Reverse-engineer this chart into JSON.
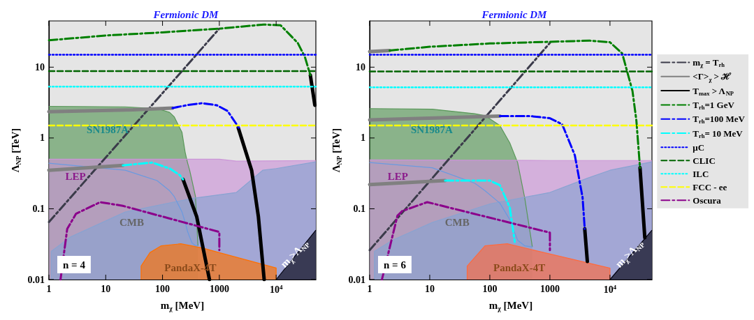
{
  "chart_data": [
    {
      "type": "line",
      "title": "Fermionic DM",
      "xlabel": "m$_{χ}$ [MeV]",
      "ylabel": "Λ$_{NP}$ [TeV]",
      "log": "xy",
      "xlim": [
        1,
        50000
      ],
      "ylim": [
        0.01,
        45
      ],
      "xticks": [
        1,
        10,
        100,
        1000,
        {
          "value": 10000,
          "label": "10$^{4}$"
        }
      ],
      "yticks": [
        0.01,
        0.1,
        1,
        10
      ],
      "annotations": [
        "SN1987A",
        "LEP",
        "CMB",
        "PandaX-4T",
        "m$_{χ}$>Λ$_{NP}$",
        "n = 4"
      ],
      "series": [
        {
          "type": "area",
          "color": "#599859",
          "x": [
            1,
            22,
            80,
            133,
            160,
            220,
            250,
            275,
            300,
            330,
            380,
            420
          ],
          "values": [
            2.8,
            2.75,
            2.6,
            2.3,
            2.0,
            1.2,
            0.63,
            0.45,
            0.35,
            0.25,
            0.15,
            0.03
          ]
        },
        {
          "type": "line",
          "color": "#6a9ae0",
          "line_style": "solid",
          "x": [
            1,
            22,
            80,
            133,
            160,
            220,
            250,
            275,
            300,
            330,
            380,
            420
          ],
          "values": [
            0.44,
            0.35,
            0.25,
            0.18,
            0.15,
            0.09,
            0.065,
            0.048,
            0.04,
            0.033,
            0.03,
            0.03
          ]
        },
        {
          "type": "area",
          "color": "#cb94d7",
          "x": [
            1,
            1000,
            2000,
            50000
          ],
          "values": [
            0.5,
            0.5,
            0.47,
            0.48
          ]
        },
        {
          "type": "area",
          "color": "#89a3d1",
          "x": [
            1.1,
            1.1,
            2.4,
            22,
            330,
            2000,
            5800,
            10000,
            50000
          ],
          "values": [
            0.01,
            0.025,
            0.04,
            0.09,
            0.14,
            0.17,
            0.35,
            0.37,
            0.46
          ]
        },
        {
          "type": "area",
          "color": "#ff7000",
          "x": [
            42,
            42,
            60,
            95,
            210,
            500,
            1000,
            10000,
            10000
          ],
          "values": [
            0.01,
            0.0155,
            0.024,
            0.03,
            0.032,
            0.028,
            0.024,
            0.0146,
            0.01
          ]
        },
        {
          "type": "area",
          "color": "#000010",
          "x": [
            10000,
            50000
          ],
          "values": [
            0.01,
            0.05
          ]
        },
        {
          "type": "line",
          "color": "#3b3b4a",
          "line_style": "dashdot",
          "x": [
            1,
            1000
          ],
          "values": [
            0.065,
            35
          ]
        },
        {
          "type": "line",
          "color": "#808080",
          "line_style": "solid",
          "x": [
            1,
            30,
            150,
            null,
            1,
            20
          ],
          "values": [
            2.35,
            2.5,
            2.65,
            null,
            0.35,
            0.41
          ]
        },
        {
          "type": "line",
          "color": "#000000",
          "line_style": "solid",
          "x": [
            40000,
            48000,
            null,
            2150,
            3700,
            4870,
            6150,
            null,
            230,
            400,
            670
          ],
          "values": [
            7.7,
            2.9,
            null,
            1.39,
            0.35,
            0.077,
            0.01,
            null,
            0.26,
            0.077,
            0.01
          ]
        },
        {
          "type": "line",
          "color": "#008000",
          "line_style": "dashdot",
          "x": [
            1,
            10,
            100,
            1000,
            3000,
            6000,
            12000,
            24000,
            32000,
            40000
          ],
          "values": [
            24,
            28,
            31,
            35,
            38,
            40,
            39,
            22,
            14,
            7.7
          ]
        },
        {
          "type": "line",
          "color": "#0000ff",
          "line_style": "dashdot",
          "x": [
            150,
            300,
            500,
            900,
            1400,
            2200
          ],
          "values": [
            2.65,
            2.95,
            3.1,
            2.9,
            2.4,
            1.4
          ]
        },
        {
          "type": "line",
          "color": "#00ffff",
          "line_style": "dashdot",
          "x": [
            20,
            66,
            134,
            200,
            230
          ],
          "values": [
            0.41,
            0.45,
            0.37,
            0.3,
            0.26
          ]
        },
        {
          "type": "line",
          "color": "#0000ff",
          "line_style": "dotted",
          "x": [
            1,
            50000
          ],
          "values": [
            15,
            15
          ]
        },
        {
          "type": "line",
          "color": "#006400",
          "line_style": "dashed",
          "x": [
            1,
            50000
          ],
          "values": [
            8.8,
            8.8
          ]
        },
        {
          "type": "line",
          "color": "#00ffff",
          "line_style": "dotted",
          "x": [
            1,
            50000
          ],
          "values": [
            5.3,
            5.3
          ]
        },
        {
          "type": "line",
          "color": "#ffff00",
          "line_style": "dashed",
          "x": [
            1,
            50000
          ],
          "values": [
            1.5,
            1.5
          ]
        },
        {
          "type": "line",
          "color": "#8b008b",
          "line_style": "dashdot",
          "x": [
            1.6,
            2.1,
            3,
            8,
            20,
            1000,
            1000
          ],
          "values": [
            0.01,
            0.052,
            0.085,
            0.124,
            0.11,
            0.047,
            0.026
          ]
        }
      ]
    },
    {
      "type": "line",
      "title": "Fermionic DM",
      "xlabel": "m$_{χ}$ [MeV]",
      "ylabel": "Λ$_{NP}$ [TeV]",
      "log": "xy",
      "xlim": [
        1,
        50000
      ],
      "ylim": [
        0.01,
        45
      ],
      "legend": "right",
      "xticks": [
        1,
        10,
        100,
        1000,
        {
          "value": 10000,
          "label": "10$^{4}$"
        }
      ],
      "yticks": [
        0.01,
        0.1,
        1,
        10
      ],
      "annotations": [
        "SN1987A",
        "LEP",
        "CMB",
        "PandaX-4T",
        "m$_{χ}$>Λ$_{NP}$",
        "n = 6"
      ],
      "series": [
        {
          "type": "area",
          "color": "#599859",
          "x": [
            1,
            11,
            56,
            83,
            147,
            215,
            290,
            380,
            510
          ],
          "values": [
            2.6,
            2.55,
            2.2,
            2.07,
            1.5,
            0.85,
            0.45,
            0.144,
            0.029
          ]
        },
        {
          "type": "line",
          "color": "#6a9ae0",
          "line_style": "solid",
          "x": [
            1,
            11,
            56,
            83,
            147,
            215,
            290,
            380,
            510
          ],
          "values": [
            0.45,
            0.38,
            0.23,
            0.18,
            0.12,
            0.07,
            0.036,
            0.03,
            0.029
          ]
        },
        {
          "type": "area",
          "color": "#cb94d7",
          "x": [
            1,
            1000,
            50000
          ],
          "values": [
            0.49,
            0.48,
            0.48
          ]
        },
        {
          "type": "area",
          "color": "#89a3d1",
          "x": [
            1.2,
            1.2,
            2.4,
            11,
            100,
            1000,
            4200,
            10000,
            50000
          ],
          "values": [
            0.01,
            0.025,
            0.036,
            0.064,
            0.117,
            0.17,
            0.27,
            0.35,
            0.46
          ]
        },
        {
          "type": "area",
          "color": "#ff6a3d",
          "x": [
            42,
            42,
            83,
            195,
            10000,
            10000
          ],
          "values": [
            0.01,
            0.0155,
            0.03,
            0.032,
            0.0145,
            0.01
          ]
        },
        {
          "type": "area",
          "color": "#000010",
          "x": [
            10000,
            50000
          ],
          "values": [
            0.01,
            0.05
          ]
        },
        {
          "type": "line",
          "name": "m$_{χ}$ = T$_{rh}$",
          "color": "#3b3b4a",
          "line_style": "dashdot",
          "x": [
            1,
            1000
          ],
          "values": [
            0.026,
            22
          ]
        },
        {
          "type": "line",
          "name": "<Γ>$_{χ}$ > ℋ",
          "color": "#808080",
          "line_style": "solid",
          "x": [
            1,
            2.15,
            null,
            1,
            147,
            null,
            1,
            18
          ],
          "values": [
            16.6,
            17.2,
            null,
            1.8,
            2.04,
            null,
            0.22,
            0.25
          ]
        },
        {
          "type": "line",
          "name": "T$_{max}$ > Λ$_{NP}$",
          "color": "#000000",
          "line_style": "solid",
          "x": [
            31600,
            38000,
            null,
            3800,
            4200
          ],
          "values": [
            0.38,
            0.039,
            null,
            0.052,
            0.018
          ]
        },
        {
          "type": "line",
          "name": "T$_{rh}$=1 GeV",
          "color": "#008000",
          "line_style": "dashdot",
          "x": [
            2.15,
            10,
            100,
            1000,
            4600,
            10000,
            16000,
            23700,
            27500,
            31600
          ],
          "values": [
            17.2,
            19.4,
            21.6,
            22.8,
            23.7,
            22.5,
            15.6,
            4.6,
            1.76,
            0.38
          ]
        },
        {
          "type": "line",
          "name": "T$_{rh}$=100 MeV",
          "color": "#0000ff",
          "line_style": "dashdot",
          "x": [
            147,
            460,
            1000,
            1600,
            2600,
            3500,
            3800
          ],
          "values": [
            2.04,
            2.04,
            1.9,
            1.56,
            0.57,
            0.144,
            0.052
          ]
        },
        {
          "type": "line",
          "name": "T$_{rh}$= 10 MeV",
          "color": "#00ffff",
          "line_style": "dashdot",
          "x": [
            18,
            100,
            147,
            215,
            260
          ],
          "values": [
            0.25,
            0.25,
            0.215,
            0.104,
            0.034
          ]
        },
        {
          "type": "line",
          "name": "μC",
          "color": "#0000ff",
          "line_style": "dotted",
          "x": [
            1,
            50000
          ],
          "values": [
            15,
            15
          ]
        },
        {
          "type": "line",
          "name": "CLIC",
          "color": "#006400",
          "line_style": "dashed",
          "x": [
            1,
            50000
          ],
          "values": [
            8.7,
            8.7
          ]
        },
        {
          "type": "line",
          "name": "ILC",
          "color": "#00ffff",
          "line_style": "dotted",
          "x": [
            1,
            50000
          ],
          "values": [
            5.2,
            5.2
          ]
        },
        {
          "type": "line",
          "name": "FCC - ee",
          "color": "#ffff00",
          "line_style": "dashed",
          "x": [
            1,
            50000
          ],
          "values": [
            1.5,
            1.5
          ]
        },
        {
          "type": "line",
          "name": "Oscura",
          "color": "#8b008b",
          "line_style": "dashdot",
          "x": [
            1.6,
            2.9,
            3.5,
            9.1,
            1000,
            1000
          ],
          "values": [
            0.01,
            0.08,
            0.093,
            0.124,
            0.046,
            0.026
          ]
        }
      ]
    }
  ]
}
